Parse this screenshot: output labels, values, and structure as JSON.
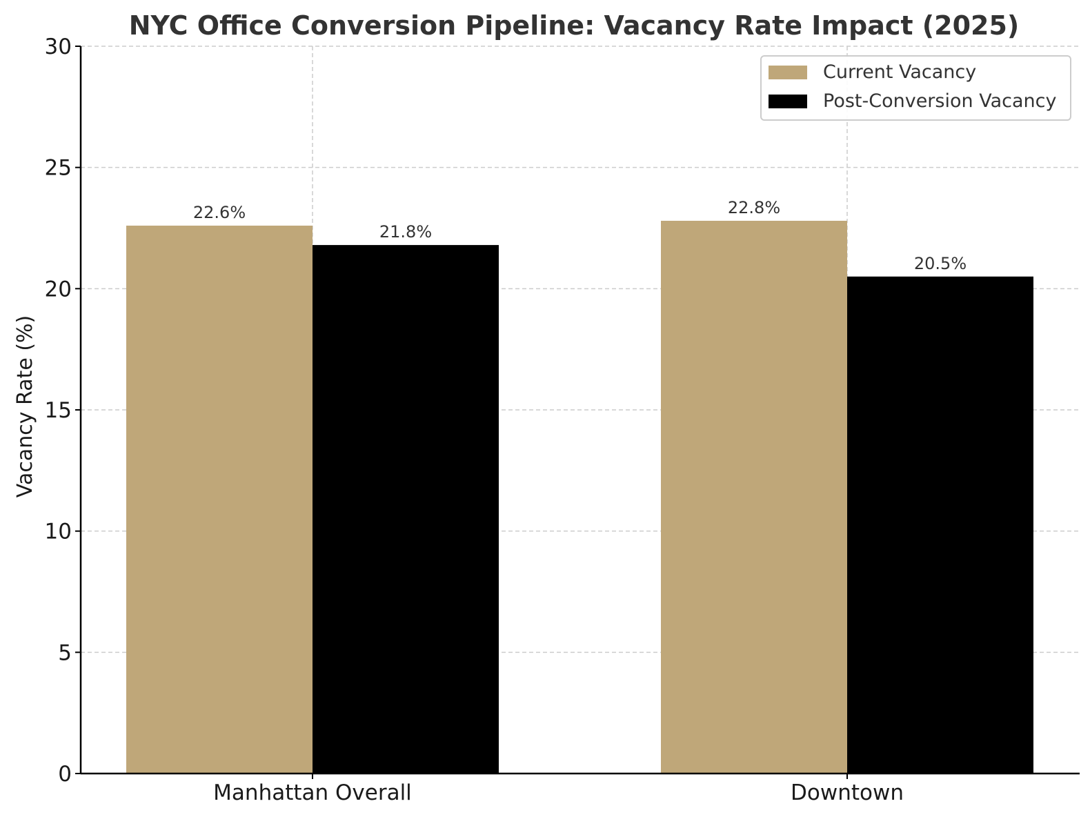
{
  "chart_data": {
    "type": "bar",
    "title": "NYC Office Conversion Pipeline: Vacancy Rate Impact (2025)",
    "xlabel": "",
    "ylabel": "Vacancy Rate (%)",
    "categories": [
      "Manhattan Overall",
      "Downtown"
    ],
    "series": [
      {
        "name": "Current Vacancy",
        "values": [
          22.6,
          22.8
        ],
        "labels": [
          "22.6%",
          "22.8%"
        ],
        "color": "#bfa779"
      },
      {
        "name": "Post-Conversion Vacancy",
        "values": [
          21.8,
          20.5
        ],
        "labels": [
          "21.8%",
          "20.5%"
        ],
        "color": "#000000"
      }
    ],
    "ylim": [
      0,
      30
    ],
    "yticks": [
      0,
      5,
      10,
      15,
      20,
      25,
      30
    ],
    "ytick_labels": [
      "0",
      "5",
      "10",
      "15",
      "20",
      "25",
      "30"
    ],
    "grid": true,
    "legend_position": "top-right"
  },
  "colors": {
    "text": "#333333",
    "axis": "#000000",
    "grid": "#cccccc"
  }
}
